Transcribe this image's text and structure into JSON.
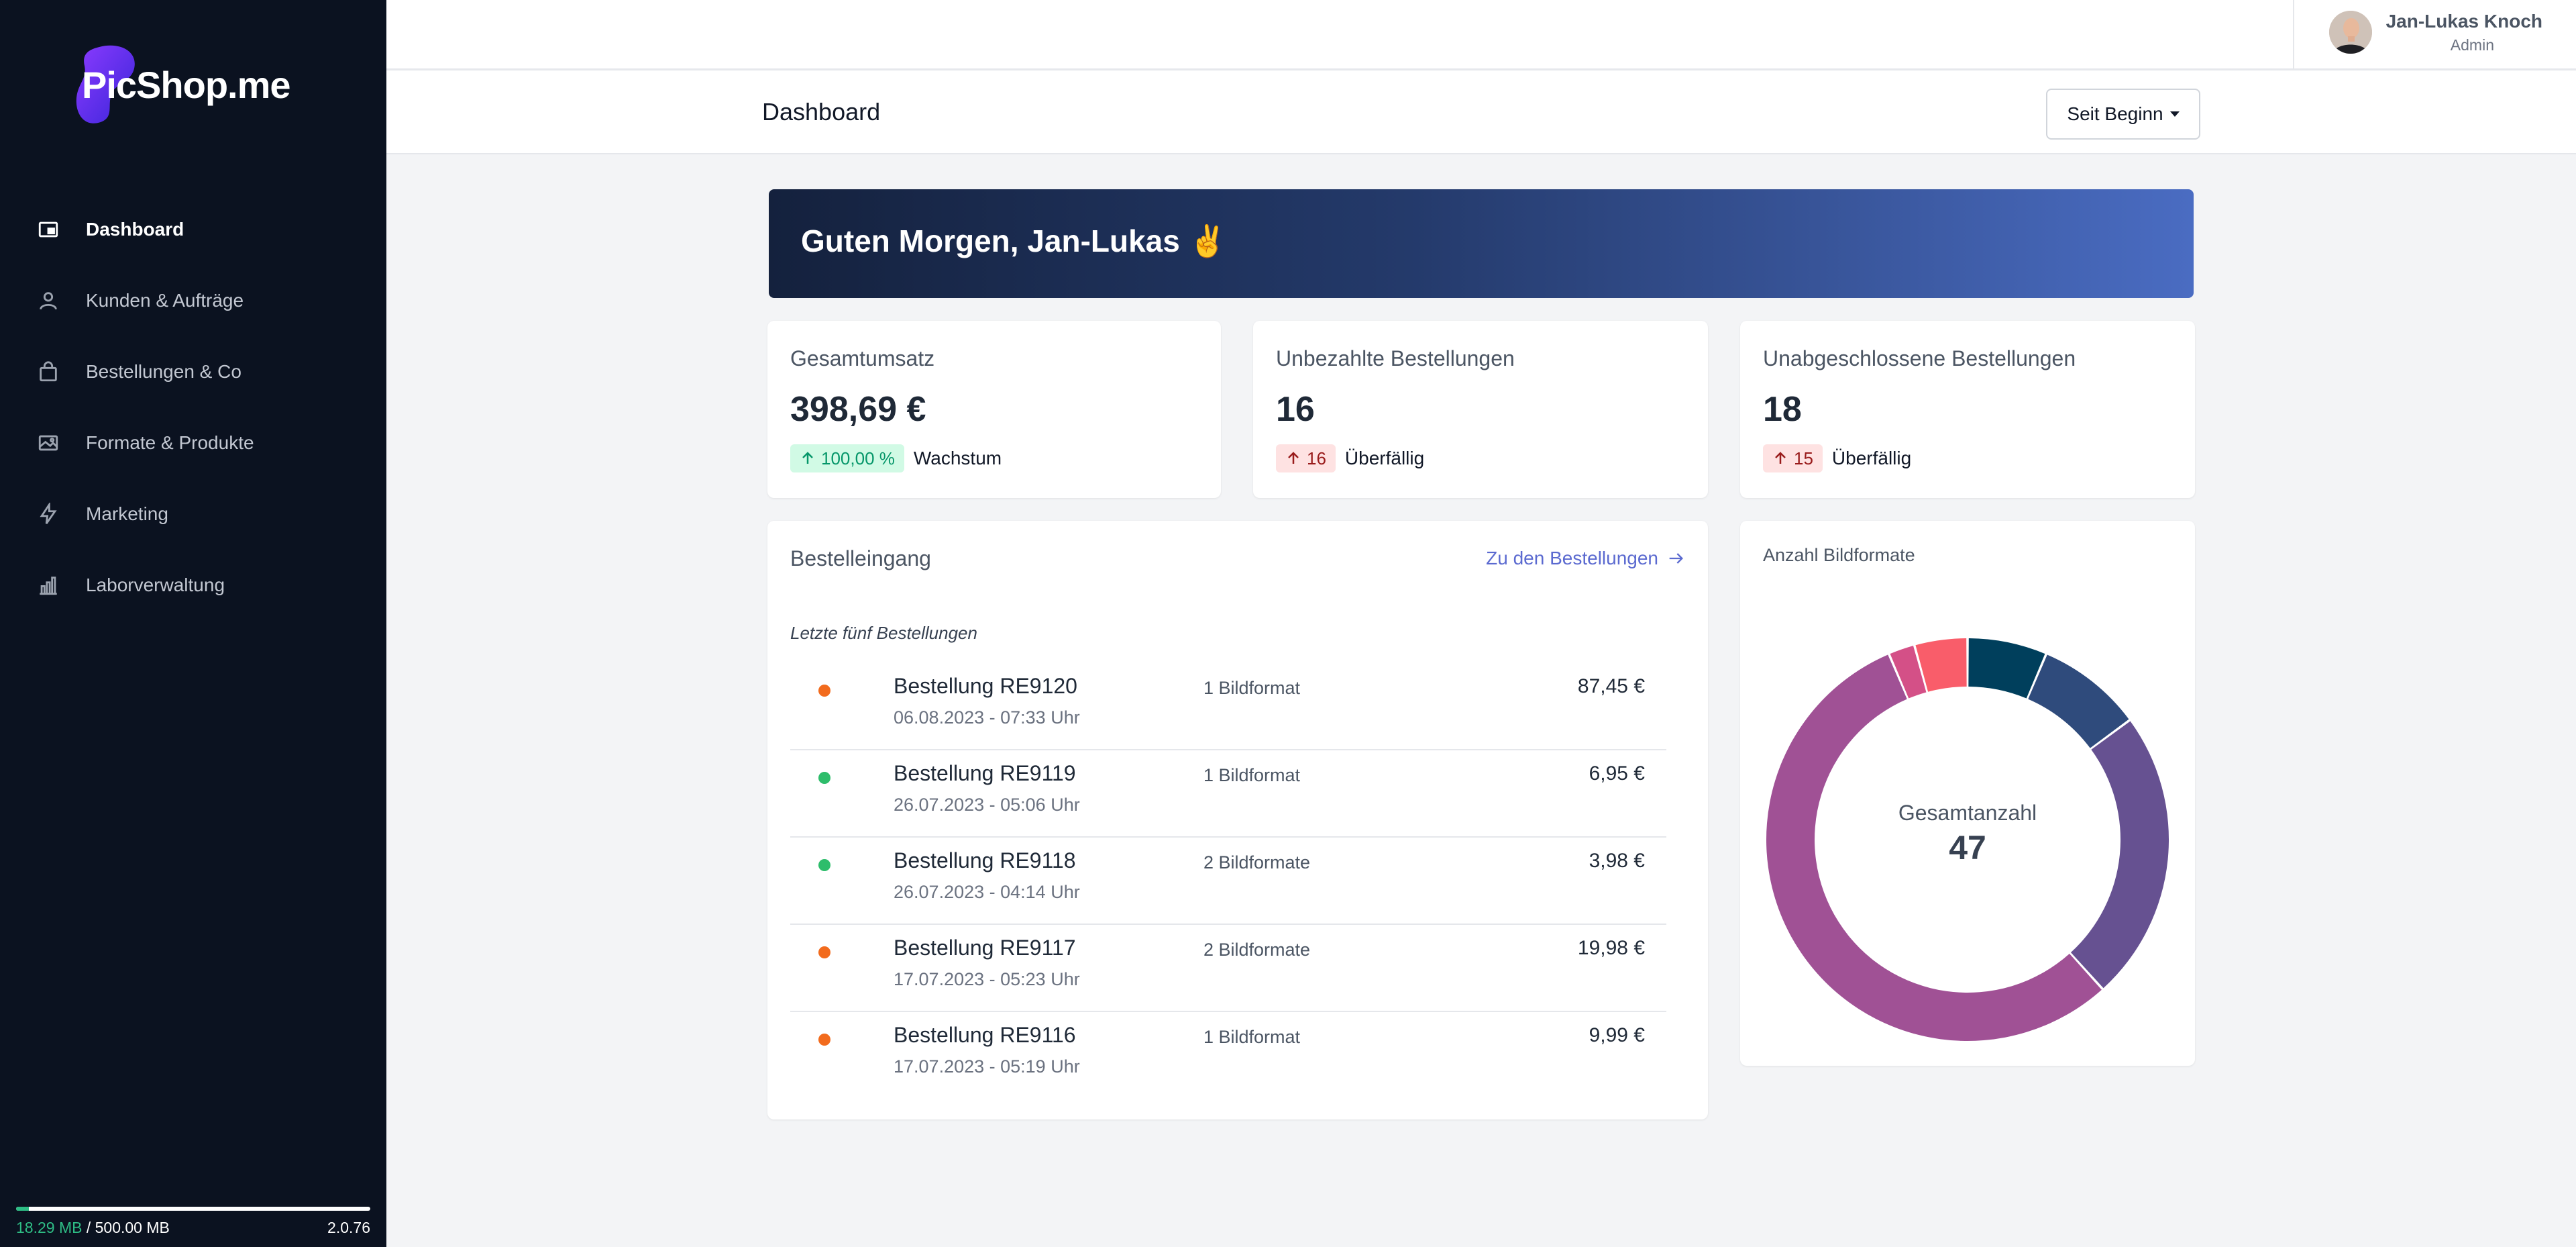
{
  "brand": {
    "logo_text": "PicShop.me"
  },
  "sidebar": {
    "items": [
      {
        "label": "Dashboard",
        "icon": "dashboard-icon",
        "active": true
      },
      {
        "label": "Kunden & Aufträge",
        "icon": "user-icon",
        "active": false
      },
      {
        "label": "Bestellungen & Co",
        "icon": "shopping-bag-icon",
        "active": false
      },
      {
        "label": "Formate & Produkte",
        "icon": "images-icon",
        "active": false
      },
      {
        "label": "Marketing",
        "icon": "lightning-icon",
        "active": false
      },
      {
        "label": "Laborverwaltung",
        "icon": "building-chart-icon",
        "active": false
      }
    ],
    "storage": {
      "used": "18.29 MB",
      "separator": " / ",
      "total": "500.00 MB",
      "fraction": 0.0366
    },
    "version": "2.0.76"
  },
  "user": {
    "name": "Jan-Lukas Knoch",
    "role": "Admin"
  },
  "header": {
    "title": "Dashboard",
    "range_label": "Seit Beginn"
  },
  "banner": {
    "text": "Guten Morgen, Jan-Lukas ✌️"
  },
  "stats": [
    {
      "title": "Gesamtumsatz",
      "value": "398,69 €",
      "badge": "100,00 %",
      "badge_color": "green",
      "note": "Wachstum"
    },
    {
      "title": "Unbezahlte Bestellungen",
      "value": "16",
      "badge": "16",
      "badge_color": "red",
      "note": "Überfällig"
    },
    {
      "title": "Unabgeschlossene Bestellungen",
      "value": "18",
      "badge": "15",
      "badge_color": "red",
      "note": "Überfällig"
    }
  ],
  "orders": {
    "title": "Bestelleingang",
    "link": "Zu den Bestellungen",
    "subtitle": "Letzte fünf Bestellungen",
    "rows": [
      {
        "name": "Bestellung RE9120",
        "date": "06.08.2023 - 07:33 Uhr",
        "formats": "1 Bildformat",
        "price": "87,45 €",
        "status_color": "#f26b1d"
      },
      {
        "name": "Bestellung RE9119",
        "date": "26.07.2023 - 05:06 Uhr",
        "formats": "1 Bildformat",
        "price": "6,95 €",
        "status_color": "#2ebd6b"
      },
      {
        "name": "Bestellung RE9118",
        "date": "26.07.2023 - 04:14 Uhr",
        "formats": "2 Bildformate",
        "price": "3,98 €",
        "status_color": "#2ebd6b"
      },
      {
        "name": "Bestellung RE9117",
        "date": "17.07.2023 - 05:23 Uhr",
        "formats": "2 Bildformate",
        "price": "19,98 €",
        "status_color": "#f26b1d"
      },
      {
        "name": "Bestellung RE9116",
        "date": "17.07.2023 - 05:19 Uhr",
        "formats": "1 Bildformat",
        "price": "9,99 €",
        "status_color": "#f26b1d"
      }
    ]
  },
  "donut": {
    "title": "Anzahl Bildformate",
    "center_label": "Gesamtanzahl",
    "center_value": "47"
  },
  "chart_data": {
    "type": "pie",
    "title": "Anzahl Bildformate",
    "total": 47,
    "series": [
      {
        "value": 3,
        "color": "#003f5c"
      },
      {
        "value": 4,
        "color": "#2f4b7c"
      },
      {
        "value": 11,
        "color": "#665191"
      },
      {
        "value": 26,
        "color": "#a05195"
      },
      {
        "value": 1,
        "color": "#d45087"
      },
      {
        "value": 2,
        "color": "#f95d6a"
      }
    ],
    "legend": "none"
  },
  "colors": {
    "accent": "#5b6ad0",
    "sidebar_bg": "#0b1220",
    "success": "#2ebd6b",
    "warning": "#f26b1d"
  }
}
